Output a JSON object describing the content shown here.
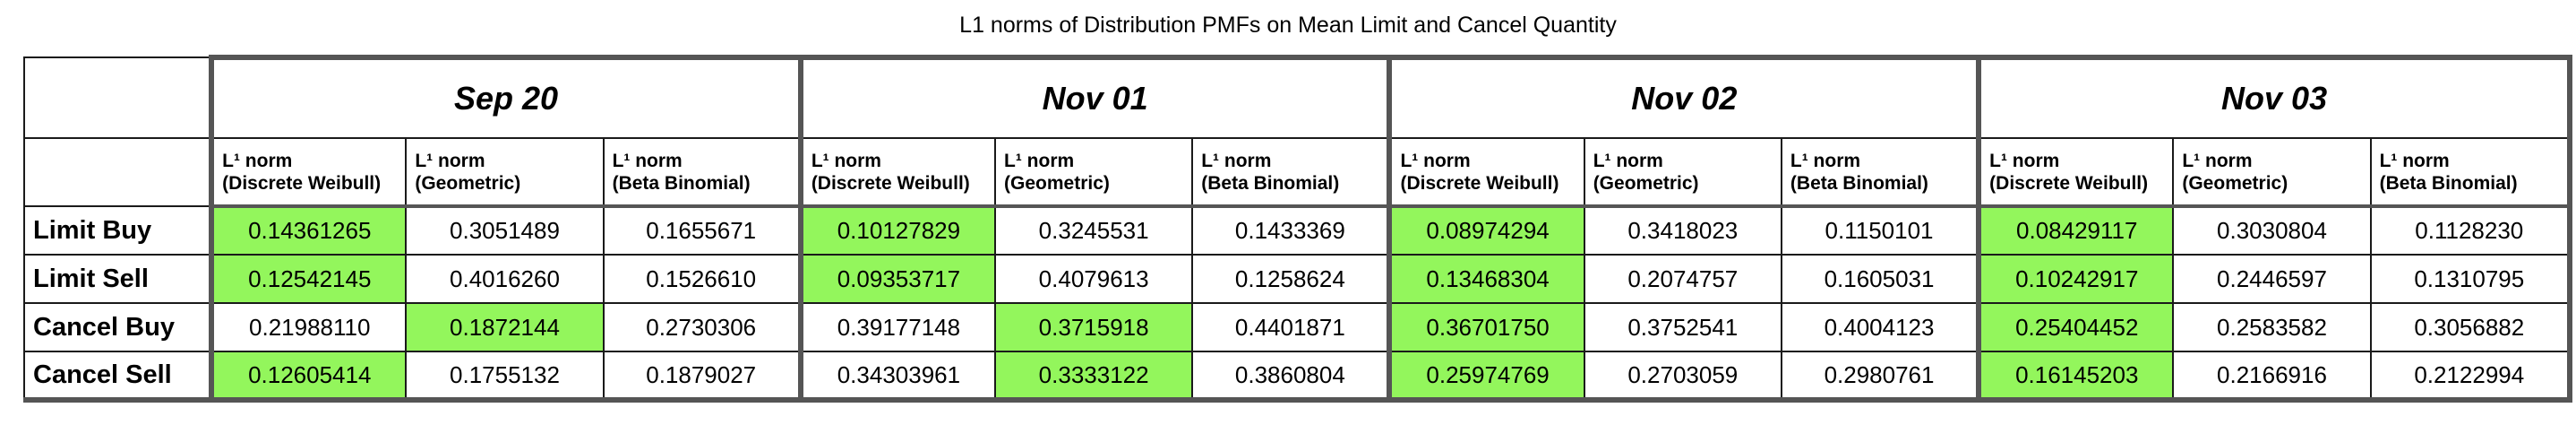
{
  "chart_data": {
    "type": "table",
    "title": "L1 norms of Distribution PMFs on Mean Limit and Cancel Quantity",
    "groups": [
      "Sep 20",
      "Nov 01",
      "Nov 02",
      "Nov 03"
    ],
    "columns": [
      {
        "line1": "L¹ norm",
        "line2": "(Discrete Weibull)"
      },
      {
        "line1": "L¹ norm",
        "line2": "(Geometric)"
      },
      {
        "line1": "L¹ norm",
        "line2": "(Beta Binomial)"
      }
    ],
    "rows": [
      {
        "label": "Limit Buy",
        "values": [
          "0.14361265",
          "0.3051489",
          "0.1655671",
          "0.10127829",
          "0.3245531",
          "0.1433369",
          "0.08974294",
          "0.3418023",
          "0.1150101",
          "0.08429117",
          "0.3030804",
          "0.1128230"
        ],
        "best": [
          0,
          3,
          6,
          9
        ]
      },
      {
        "label": "Limit Sell",
        "values": [
          "0.12542145",
          "0.4016260",
          "0.1526610",
          "0.09353717",
          "0.4079613",
          "0.1258624",
          "0.13468304",
          "0.2074757",
          "0.1605031",
          "0.10242917",
          "0.2446597",
          "0.1310795"
        ],
        "best": [
          0,
          3,
          6,
          9
        ]
      },
      {
        "label": "Cancel Buy",
        "values": [
          "0.21988110",
          "0.1872144",
          "0.2730306",
          "0.39177148",
          "0.3715918",
          "0.4401871",
          "0.36701750",
          "0.3752541",
          "0.4004123",
          "0.25404452",
          "0.2583582",
          "0.3056882"
        ],
        "best": [
          1,
          4,
          6,
          9
        ]
      },
      {
        "label": "Cancel Sell",
        "values": [
          "0.12605414",
          "0.1755132",
          "0.1879027",
          "0.34303961",
          "0.3333122",
          "0.3860804",
          "0.25974769",
          "0.2703059",
          "0.2980761",
          "0.16145203",
          "0.2166916",
          "0.2122994"
        ],
        "best": [
          0,
          4,
          6,
          9
        ]
      }
    ],
    "highlight_color": "#93f65c"
  }
}
